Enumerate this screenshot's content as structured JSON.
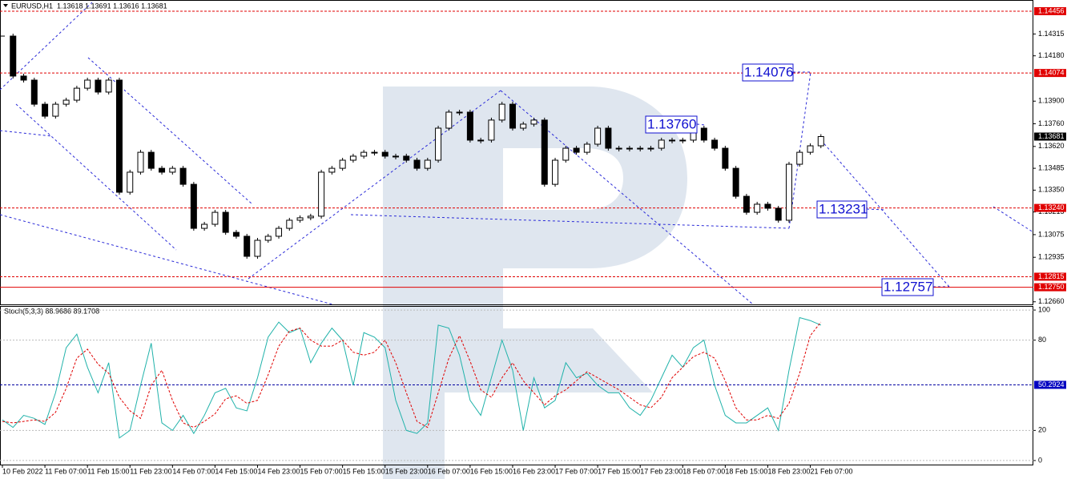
{
  "chart_data": [
    {
      "type": "candlestick",
      "title": "EURUSD,H1  1.13618 1.13691 1.13616 1.13681",
      "close": [
        1.14302,
        1.14055,
        1.1403,
        1.13881,
        1.13807,
        1.13881,
        1.13906,
        1.1398,
        1.1403,
        1.13956,
        1.1403,
        1.13337,
        1.13461,
        1.13584,
        1.13485,
        1.13461,
        1.13485,
        1.13386,
        1.13114,
        1.13139,
        1.13213,
        1.13089,
        1.13065,
        1.12941,
        1.1304,
        1.13065,
        1.13114,
        1.13164,
        1.13179,
        1.13189,
        1.13461,
        1.13485,
        1.13535,
        1.1356,
        1.13584,
        1.13584,
        1.1356,
        1.1356,
        1.13535,
        1.13485,
        1.13535,
        1.13733,
        1.13832,
        1.13832,
        1.13659,
        1.13659,
        1.13783,
        1.13881,
        1.13733,
        1.13758,
        1.13783,
        1.13386,
        1.13535,
        1.13609,
        1.13584,
        1.13634,
        1.13733,
        1.13609,
        1.13609,
        1.13609,
        1.13609,
        1.13609,
        1.13659,
        1.13659,
        1.13659,
        1.13733,
        1.13659,
        1.13609,
        1.13485,
        1.13312,
        1.13213,
        1.13263,
        1.13238,
        1.13164,
        1.1351,
        1.13584,
        1.13624,
        1.13681
      ],
      "ylim": [
        1.12644,
        1.14525
      ],
      "yticks": [
        {
          "value": 1.14315,
          "label": "1.14315"
        },
        {
          "value": 1.1418,
          "label": "1.14180"
        },
        {
          "value": 1.139,
          "label": "1.13900"
        },
        {
          "value": 1.1376,
          "label": "1.13760"
        },
        {
          "value": 1.1362,
          "label": "1.13620"
        },
        {
          "value": 1.13485,
          "label": "1.13485"
        },
        {
          "value": 1.1335,
          "label": "1.13350"
        },
        {
          "value": 1.13215,
          "label": "1.13215"
        },
        {
          "value": 1.13075,
          "label": "1.13075"
        },
        {
          "value": 1.12935,
          "label": "1.12935"
        },
        {
          "value": 1.1266,
          "label": "1.12660"
        }
      ],
      "levels": [
        {
          "value": 1.14456,
          "label": "1.14456",
          "style": "dashed"
        },
        {
          "value": 1.14074,
          "label": "1.14074",
          "style": "dashed"
        },
        {
          "value": 1.1324,
          "label": "1.13240",
          "style": "dashed"
        },
        {
          "value": 1.12815,
          "label": "1.12815",
          "style": "dashed"
        },
        {
          "value": 1.1275,
          "label": "1.12750",
          "style": "solid"
        }
      ],
      "level_color": "#e00000",
      "current_price": {
        "value": 1.13681,
        "label": "1.13681"
      },
      "annotations": [
        "1.14076",
        "1.13760",
        "1.13231",
        "1.12757"
      ]
    },
    {
      "type": "line",
      "title": "Stoch(5,3,3) 88.9686 89.1708",
      "series": [
        {
          "color": "#20b2aa",
          "style": "solid",
          "values": [
            27,
            22,
            30,
            28,
            24,
            45,
            75,
            84,
            62,
            45,
            65,
            15,
            20,
            50,
            78,
            25,
            20,
            30,
            18,
            30,
            45,
            48,
            35,
            33,
            55,
            82,
            92,
            85,
            88,
            65,
            78,
            88,
            80,
            50,
            85,
            82,
            75,
            40,
            20,
            18,
            25,
            90,
            88,
            70,
            40,
            30,
            55,
            80,
            60,
            20,
            55,
            35,
            40,
            65,
            55,
            58,
            50,
            45,
            45,
            35,
            30,
            40,
            55,
            70,
            62,
            75,
            80,
            50,
            30,
            25,
            25,
            30,
            35,
            20,
            60,
            95,
            93,
            90
          ]
        },
        {
          "color": "#e00000",
          "style": "dashed",
          "values": [
            26,
            25,
            26,
            27,
            26,
            32,
            48,
            68,
            74,
            64,
            58,
            42,
            33,
            28,
            50,
            60,
            40,
            25,
            22,
            26,
            31,
            41,
            43,
            38,
            40,
            57,
            76,
            86,
            88,
            80,
            76,
            76,
            80,
            72,
            70,
            72,
            80,
            65,
            45,
            26,
            22,
            45,
            68,
            83,
            66,
            47,
            42,
            55,
            65,
            53,
            45,
            37,
            43,
            47,
            53,
            59,
            55,
            51,
            47,
            42,
            37,
            35,
            42,
            55,
            62,
            69,
            72,
            68,
            53,
            35,
            27,
            27,
            30,
            28,
            38,
            58,
            83,
            92
          ]
        }
      ],
      "ylim": [
        -2.7,
        102.7
      ],
      "yticks": [
        0,
        20,
        80,
        100
      ],
      "level": {
        "value": 50.2924,
        "label": "50.2924"
      },
      "x_labels": [
        "10 Feb 2022",
        "11 Feb 07:00",
        "11 Feb 15:00",
        "11 Feb 23:00",
        "14 Feb 07:00",
        "14 Feb 15:00",
        "14 Feb 23:00",
        "15 Feb 07:00",
        "15 Feb 15:00",
        "15 Feb 23:00",
        "16 Feb 07:00",
        "16 Feb 15:00",
        "16 Feb 23:00",
        "17 Feb 07:00",
        "17 Feb 15:00",
        "17 Feb 23:00",
        "18 Feb 07:00",
        "18 Feb 15:00",
        "18 Feb 23:00",
        "21 Feb 07:00"
      ]
    }
  ]
}
